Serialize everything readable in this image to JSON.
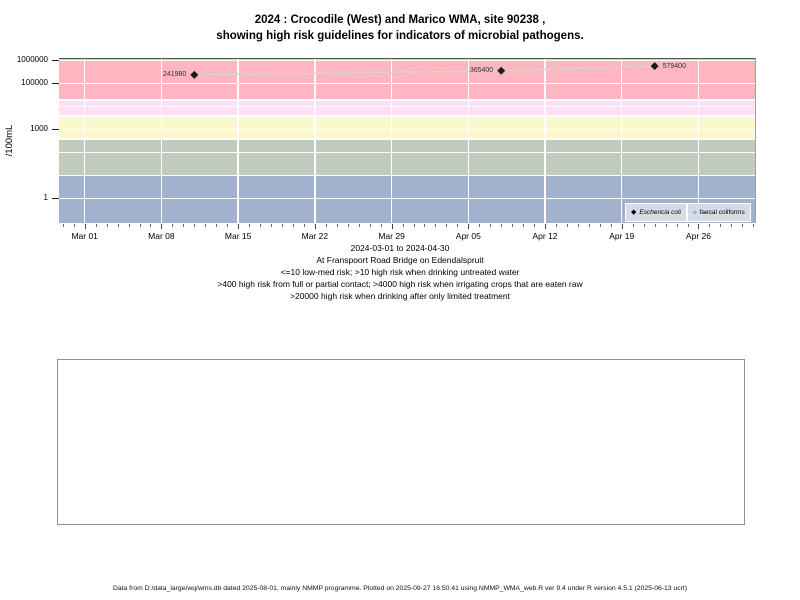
{
  "title": {
    "line1": "2024 : Crocodile (West) and Marico WMA, site 90238 ,",
    "line2": "showing high risk guidelines for indicators of microbial pathogens."
  },
  "axis_notes": [
    "2024-03-01 to 2024-04-30",
    "At Franspoort Road Bridge on Edendalspruit",
    "<=10 low-med risk; >10 high risk when drinking untreated water",
    ">400 high risk from full or partial contact; >4000 high risk when irrigating crops that are eaten raw",
    ">20000 high risk when drinking after only limited treatment"
  ],
  "footer": "Data from D:/data_large/wq/wms.db dated 2025-08-01, mainly NMMP programme. Plotted on 2025-09-27 16:50:41 using NMMP_WMA_web.R ver 9.4 under R version 4.5.1 (2025-06-13 ucrt)",
  "chart_data": {
    "type": "line",
    "title": "2024 : Crocodile (West) and Marico WMA, site 90238 , showing high risk guidelines for indicators of microbial pathogens.",
    "ylabel": "/100mL",
    "y_scale": "log10",
    "ylim_top": 1000000,
    "y_ticks": [
      {
        "value": 1000000,
        "label": "1000000"
      },
      {
        "value": 100000,
        "label": "100000"
      },
      {
        "value": 1000,
        "label": "1000"
      },
      {
        "value": 1,
        "label": "1"
      }
    ],
    "y_gridline_values": [
      1,
      10,
      100,
      1000,
      10000,
      100000,
      1000000,
      400,
      4000,
      20000
    ],
    "x_axis": {
      "start": "2024-03-01",
      "end": "2024-04-30",
      "ticks": [
        {
          "label": "Mar 01",
          "day": 0
        },
        {
          "label": "Mar 08",
          "day": 7
        },
        {
          "label": "Mar 15",
          "day": 14
        },
        {
          "label": "Mar 22",
          "day": 21
        },
        {
          "label": "Mar 29",
          "day": 28
        },
        {
          "label": "Apr 05",
          "day": 35
        },
        {
          "label": "Apr 12",
          "day": 42
        },
        {
          "label": "Apr 19",
          "day": 49
        },
        {
          "label": "Apr 26",
          "day": 56
        }
      ],
      "minor_tick_day_range": [
        -2,
        61
      ]
    },
    "bands": [
      {
        "min": 20000,
        "max": null,
        "color": "#FFB6C1"
      },
      {
        "min": 4000,
        "max": 20000,
        "color": "#FFDFF8"
      },
      {
        "min": 400,
        "max": 4000,
        "color": "#FCF8CE"
      },
      {
        "min": 10,
        "max": 400,
        "color": "#C2CCBE"
      },
      {
        "min": null,
        "max": 10,
        "color": "#A2B2CE"
      }
    ],
    "series": [
      {
        "name": "Eschericia coli",
        "legend_marker": "◆",
        "marker": "filled-diamond",
        "marker_color": "#1a1a1a",
        "line_color": "#d3d3d3",
        "points": [
          {
            "date": "2024-03-11",
            "value": 241980,
            "label_side": "left"
          },
          {
            "date": "2024-04-08",
            "value": 365400,
            "label_side": "left"
          },
          {
            "date": "2024-04-22",
            "value": 579400,
            "label_side": "right"
          }
        ]
      },
      {
        "name": "faecal coliforms",
        "legend_marker": "○",
        "marker": "open-circle",
        "marker_color": "#555555",
        "line_color": "#d3d3d3",
        "points": []
      }
    ],
    "legend_position": "bottom-right",
    "grid": "white weekly vertical and log-decade horizontal lines"
  }
}
